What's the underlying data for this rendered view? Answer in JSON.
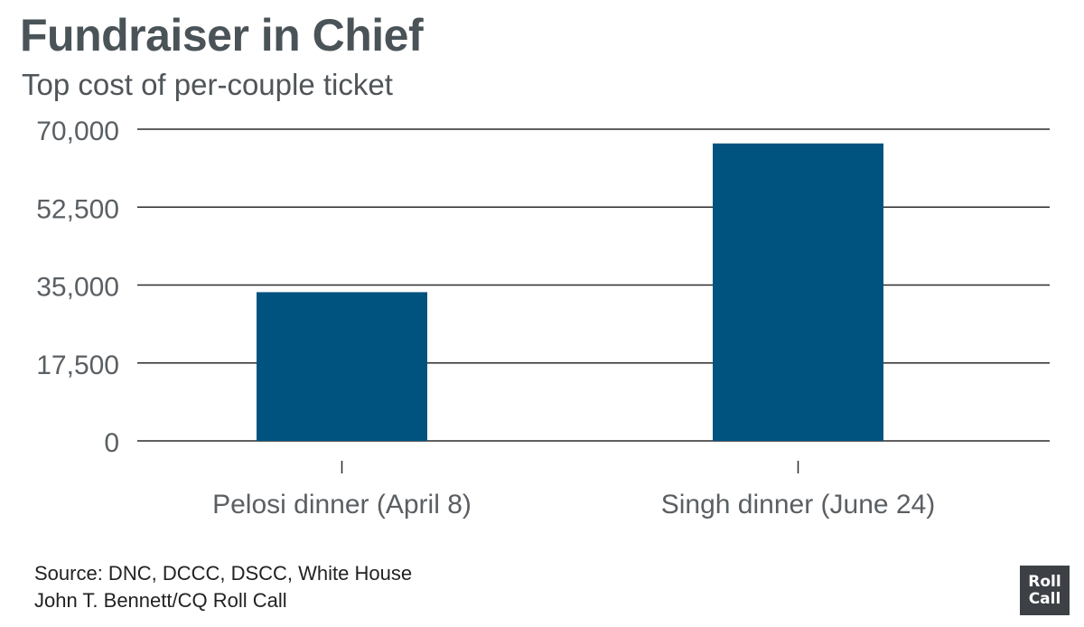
{
  "header": {
    "title": "Fundraiser in Chief",
    "subtitle": "Top cost of per-couple ticket"
  },
  "chart_data": {
    "type": "bar",
    "title": "Fundraiser in Chief",
    "subtitle": "Top cost of per-couple ticket",
    "categories": [
      "Pelosi dinner (April 8)",
      "Singh dinner (June 24)"
    ],
    "values": [
      33400,
      66800
    ],
    "ylim": [
      0,
      70000
    ],
    "yticks": [
      0,
      17500,
      35000,
      52500,
      70000
    ],
    "ytick_labels": [
      "0",
      "17,500",
      "35,000",
      "52,500",
      "70,000"
    ],
    "xlabel": "",
    "ylabel": "",
    "grid": true,
    "bar_color": "#00527f"
  },
  "footer": {
    "source": "Source: DNC, DCCC, DSCC, White House",
    "credit": "John T. Bennett/CQ Roll Call"
  },
  "logo": {
    "line1": "Roll",
    "line2": "Call",
    "color": "#3d4145"
  }
}
